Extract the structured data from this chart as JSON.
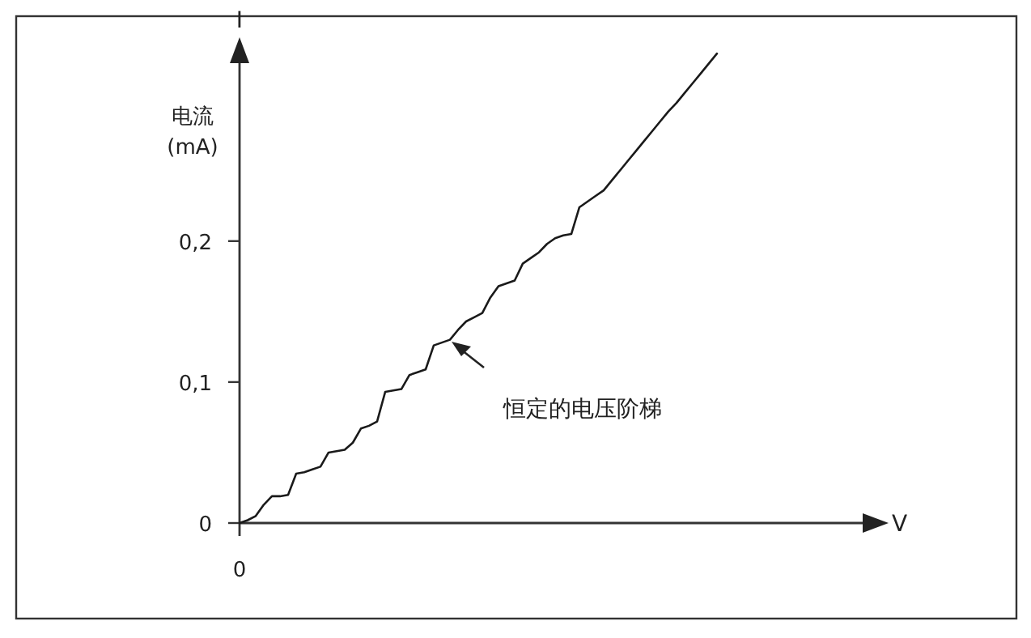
{
  "chart_data": {
    "type": "line",
    "ylabel": "I",
    "annotations": [
      "电流 (mA)",
      "恒定的电压阶梯",
      "V"
    ],
    "categories": [
      "0",
      null,
      null,
      null,
      null,
      null,
      null,
      null,
      null,
      null,
      null,
      null,
      null,
      null,
      null,
      null,
      null,
      null,
      null,
      null,
      null,
      null,
      null,
      null,
      null,
      null,
      null,
      null,
      null,
      null,
      null,
      null,
      null,
      null,
      null,
      null,
      null,
      null,
      null,
      null,
      null,
      null,
      null,
      null,
      null,
      null,
      null,
      null,
      null,
      null,
      null,
      null,
      null,
      null,
      null,
      null,
      null,
      null,
      null,
      null
    ],
    "values": [
      0,
      0.002,
      0.005,
      0.013,
      0.019,
      0.019,
      0.02,
      0.035,
      0.036,
      0.038,
      0.04,
      0.05,
      0.051,
      0.052,
      0.057,
      0.067,
      0.069,
      0.072,
      0.093,
      0.094,
      0.095,
      0.105,
      0.107,
      0.109,
      0.126,
      0.128,
      0.13,
      0.137,
      0.143,
      0.146,
      0.149,
      0.16,
      0.168,
      0.17,
      0.172,
      0.184,
      0.188,
      0.192,
      0.198,
      0.202,
      0.204,
      0.205,
      0.224,
      0.228,
      0.232,
      0.236,
      0.243,
      0.25,
      0.257,
      0.264,
      0.271,
      0.278,
      0.285,
      0.292,
      0.298,
      0.305,
      0.312,
      0.319,
      0.326,
      0.333
    ],
    "color": "#1a1a1a",
    "ylim": [
      0,
      0.34
    ],
    "yticks": [
      0,
      {
        "value": 0.1,
        "label": "0,1"
      },
      {
        "value": 0.2,
        "label": "0,2"
      }
    ],
    "grid": false,
    "marker": "none",
    "line_style": "solid"
  }
}
